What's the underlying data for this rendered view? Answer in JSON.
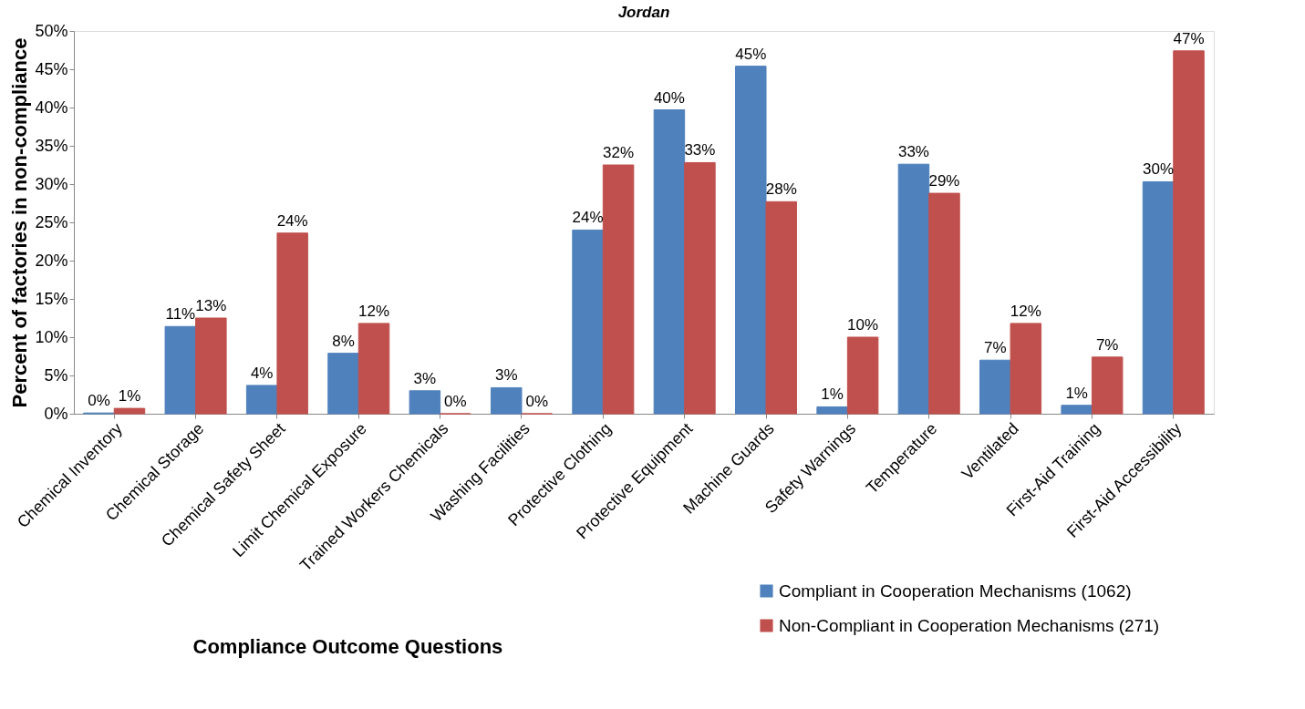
{
  "chart_data": {
    "type": "bar",
    "title": "Jordan",
    "xlabel": "Compliance Outcome Questions",
    "ylabel": "Percent of factories in non-compliance",
    "categories": [
      "Chemical Inventory",
      "Chemical Storage",
      "Chemical Safety Sheet",
      "Limit Chemical Exposure",
      "Trained Workers Chemicals",
      "Washing Facilities",
      "Protective Clothing",
      "Protective Equipment",
      "Machine Guards",
      "Safety Warnings",
      "Temperature",
      "Ventilated",
      "First-Aid Training",
      "First-Aid Accessibility"
    ],
    "series": [
      {
        "name": "Compliant in Cooperation Mechanisms (1062)",
        "color": "#4f81bd",
        "values": [
          0.1,
          11.4,
          3.7,
          7.9,
          3.0,
          3.4,
          24.0,
          39.7,
          45.4,
          0.9,
          32.6,
          7.0,
          1.1,
          30.3
        ],
        "value_labels": [
          "0%",
          "11%",
          "4%",
          "8%",
          "3%",
          "3%",
          "24%",
          "40%",
          "45%",
          "1%",
          "33%",
          "7%",
          "1%",
          "30%"
        ]
      },
      {
        "name": "Non-Compliant in Cooperation Mechanisms (271)",
        "color": "#c0504d",
        "values": [
          0.7,
          12.5,
          23.6,
          11.8,
          0,
          0,
          32.5,
          32.8,
          27.7,
          10.0,
          28.8,
          11.8,
          7.4,
          47.4
        ],
        "value_labels": [
          "1%",
          "13%",
          "24%",
          "12%",
          "0%",
          "0%",
          "32%",
          "33%",
          "28%",
          "10%",
          "29%",
          "12%",
          "7%",
          "47%"
        ]
      }
    ],
    "ylim": [
      0,
      50
    ],
    "yticks": [
      {
        "value": 0,
        "label": "0%"
      },
      {
        "value": 5,
        "label": "5%"
      },
      {
        "value": 10,
        "label": "10%"
      },
      {
        "value": 15,
        "label": "15%"
      },
      {
        "value": 20,
        "label": "20%"
      },
      {
        "value": 25,
        "label": "25%"
      },
      {
        "value": 30,
        "label": "30%"
      },
      {
        "value": 35,
        "label": "35%"
      },
      {
        "value": 40,
        "label": "40%"
      },
      {
        "value": 45,
        "label": "45%"
      },
      {
        "value": 50,
        "label": "50%"
      }
    ],
    "grid": false,
    "legend": "bottom right"
  }
}
